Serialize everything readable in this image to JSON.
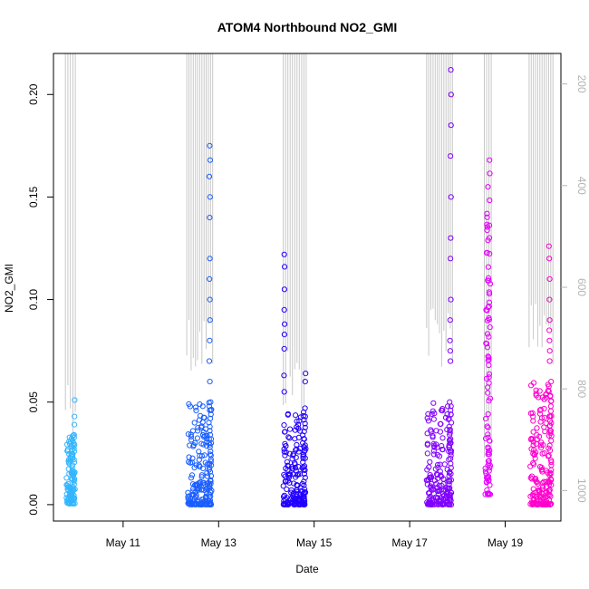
{
  "chart_data": {
    "type": "scatter",
    "title": "ATOM4 Northbound NO2_GMI",
    "xlabel": "Date",
    "ylabel": "NO2_GMI",
    "x_axis_type": "date",
    "xlim": [
      "2018-05-09T13:00",
      "2018-05-20T04:00"
    ],
    "ylim": [
      -0.008,
      0.22
    ],
    "x_ticks": [
      {
        "date": "2018-05-11",
        "label": "May 11"
      },
      {
        "date": "2018-05-13",
        "label": "May 13"
      },
      {
        "date": "2018-05-15",
        "label": "May 15"
      },
      {
        "date": "2018-05-17",
        "label": "May 17"
      },
      {
        "date": "2018-05-19",
        "label": "May 19"
      }
    ],
    "y_ticks": [
      {
        "value": 0.0,
        "label": "0.00"
      },
      {
        "value": 0.05,
        "label": "0.05"
      },
      {
        "value": 0.1,
        "label": "0.10"
      },
      {
        "value": 0.15,
        "label": "0.15"
      },
      {
        "value": 0.2,
        "label": "0.20"
      }
    ],
    "right_axis": {
      "inverted": true,
      "ylim": [
        1060,
        140
      ],
      "ticks": [
        {
          "value": 200,
          "label": "200"
        },
        {
          "value": 400,
          "label": "400"
        },
        {
          "value": 600,
          "label": "600"
        },
        {
          "value": 800,
          "label": "800"
        },
        {
          "value": 1000,
          "label": "1000"
        }
      ],
      "color": "#b3b3b3"
    },
    "grid": false,
    "legend": "none",
    "flights": [
      {
        "color": "#33b5ff",
        "t_start": "2018-05-09T19:30",
        "t_end": "2018-05-09T23:50",
        "no2_min": 0.0005,
        "no2_max": 0.034,
        "outliers": [
          [
            "2018-05-09T23:40",
            0.051
          ],
          [
            "2018-05-09T23:35",
            0.043
          ],
          [
            "2018-05-09T23:30",
            0.039
          ]
        ]
      },
      {
        "color": "#1a5eff",
        "t_start": "2018-05-12T08:30",
        "t_end": "2018-05-12T20:30",
        "no2_min": 0.0,
        "no2_max": 0.05,
        "outliers": [
          [
            "2018-05-12T19:30",
            0.175
          ],
          [
            "2018-05-12T19:45",
            0.168
          ],
          [
            "2018-05-12T19:20",
            0.16
          ],
          [
            "2018-05-12T19:40",
            0.15
          ],
          [
            "2018-05-12T19:30",
            0.14
          ],
          [
            "2018-05-12T19:35",
            0.12
          ],
          [
            "2018-05-12T19:25",
            0.11
          ],
          [
            "2018-05-12T19:35",
            0.1
          ],
          [
            "2018-05-12T19:40",
            0.09
          ],
          [
            "2018-05-12T19:30",
            0.08
          ],
          [
            "2018-05-12T19:20",
            0.07
          ],
          [
            "2018-05-12T19:35",
            0.06
          ]
        ]
      },
      {
        "color": "#2200ff",
        "t_start": "2018-05-14T08:30",
        "t_end": "2018-05-14T19:50",
        "no2_min": 0.0,
        "no2_max": 0.047,
        "outliers": [
          [
            "2018-05-14T09:00",
            0.122
          ],
          [
            "2018-05-14T09:10",
            0.116
          ],
          [
            "2018-05-14T09:05",
            0.105
          ],
          [
            "2018-05-14T09:00",
            0.095
          ],
          [
            "2018-05-14T09:10",
            0.088
          ],
          [
            "2018-05-14T09:05",
            0.083
          ],
          [
            "2018-05-14T09:00",
            0.076
          ],
          [
            "2018-05-14T08:50",
            0.063
          ],
          [
            "2018-05-14T09:00",
            0.055
          ],
          [
            "2018-05-14T19:40",
            0.064
          ],
          [
            "2018-05-14T19:30",
            0.06
          ]
        ]
      },
      {
        "color": "#8000ff",
        "t_start": "2018-05-17T08:30",
        "t_end": "2018-05-17T21:10",
        "no2_min": 0.0,
        "no2_max": 0.05,
        "outliers": [
          [
            "2018-05-17T20:40",
            0.212
          ],
          [
            "2018-05-17T20:50",
            0.2
          ],
          [
            "2018-05-17T20:45",
            0.185
          ],
          [
            "2018-05-17T20:30",
            0.17
          ],
          [
            "2018-05-17T20:45",
            0.15
          ],
          [
            "2018-05-17T20:35",
            0.13
          ],
          [
            "2018-05-17T20:30",
            0.12
          ],
          [
            "2018-05-17T20:40",
            0.1
          ],
          [
            "2018-05-17T20:20",
            0.09
          ],
          [
            "2018-05-17T20:15",
            0.08
          ],
          [
            "2018-05-17T20:25",
            0.075
          ],
          [
            "2018-05-17T20:30",
            0.07
          ]
        ]
      },
      {
        "color": "#e600ff",
        "t_start": "2018-05-18T14:00",
        "t_end": "2018-05-18T16:30",
        "no2_min": 0.005,
        "no2_max": 0.168,
        "outliers": []
      },
      {
        "color": "#ff00cc",
        "t_start": "2018-05-19T12:30",
        "t_end": "2018-05-19T23:30",
        "no2_min": 0.0,
        "no2_max": 0.06,
        "outliers": [
          [
            "2018-05-19T22:00",
            0.126
          ],
          [
            "2018-05-19T22:10",
            0.12
          ],
          [
            "2018-05-19T22:20",
            0.11
          ],
          [
            "2018-05-19T22:15",
            0.1
          ],
          [
            "2018-05-19T22:20",
            0.09
          ],
          [
            "2018-05-19T22:10",
            0.085
          ],
          [
            "2018-05-19T22:15",
            0.08
          ],
          [
            "2018-05-19T22:25",
            0.075
          ],
          [
            "2018-05-19T22:20",
            0.07
          ]
        ]
      }
    ],
    "altitude_trace": {
      "color": "#c8c8c8",
      "segments": [
        {
          "t_start": "2018-05-09T19:00",
          "t_end": "2018-05-09T23:59",
          "p_low": 820,
          "p_high": 140,
          "note": "ascent/descent spikes"
        },
        {
          "t_start": "2018-05-12T08:00",
          "t_end": "2018-05-12T21:00",
          "p_low": 710,
          "p_high": 140
        },
        {
          "t_start": "2018-05-14T08:30",
          "t_end": "2018-05-14T20:00",
          "p_low": 780,
          "p_high": 140
        },
        {
          "t_start": "2018-05-17T08:30",
          "t_end": "2018-05-17T21:30",
          "p_low": 690,
          "p_high": 140
        },
        {
          "t_start": "2018-05-18T13:30",
          "t_end": "2018-05-18T17:00",
          "p_low": 890,
          "p_high": 140
        },
        {
          "t_start": "2018-05-19T12:00",
          "t_end": "2018-05-19T23:59",
          "p_low": 690,
          "p_high": 140
        }
      ]
    }
  }
}
